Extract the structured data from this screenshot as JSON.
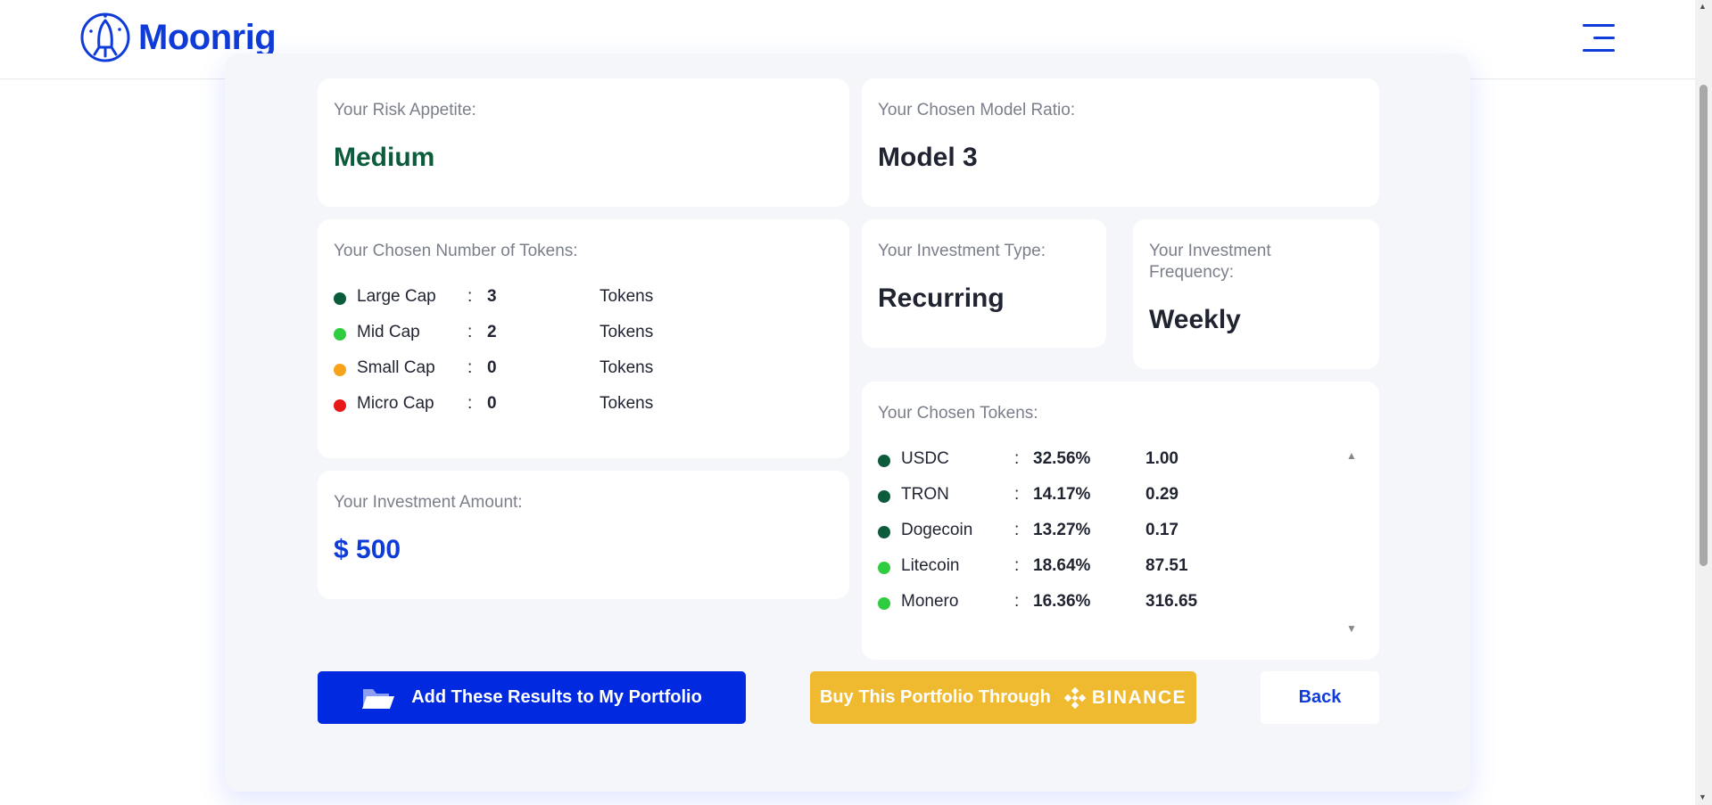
{
  "app": {
    "name": "Moonrig"
  },
  "colors": {
    "brand": "#0f3bd8",
    "large_cap": "#0b5c3b",
    "mid_cap": "#2fcc3f",
    "small_cap": "#f7a21b",
    "micro_cap": "#e81818",
    "binance": "#f0ba30",
    "value_green": "#0b5c3b",
    "amount_blue": "#0f3bd8"
  },
  "risk": {
    "label": "Your Risk Appetite:",
    "value": "Medium"
  },
  "model": {
    "label": "Your Chosen Model Ratio:",
    "value": "Model 3"
  },
  "tokens_count": {
    "label": "Your Chosen Number of Tokens:",
    "rows": [
      {
        "name": "Large Cap",
        "sep": ":",
        "count": "3",
        "unit": "Tokens",
        "color": "#0b5c3b"
      },
      {
        "name": "Mid Cap",
        "sep": ":",
        "count": "2",
        "unit": "Tokens",
        "color": "#2fcc3f"
      },
      {
        "name": "Small Cap",
        "sep": ":",
        "count": "0",
        "unit": "Tokens",
        "color": "#f7a21b"
      },
      {
        "name": "Micro Cap",
        "sep": ":",
        "count": "0",
        "unit": "Tokens",
        "color": "#e81818"
      }
    ]
  },
  "amount": {
    "label": "Your Investment Amount:",
    "value": "$ 500"
  },
  "investment_type": {
    "label": "Your Investment Type:",
    "value": "Recurring"
  },
  "frequency": {
    "label_line1": "Your Investment",
    "label_line2": "Frequency:",
    "value": "Weekly"
  },
  "chosen_tokens": {
    "label": "Your Chosen Tokens:",
    "rows": [
      {
        "name": "USDC",
        "sep": ":",
        "percent": "32.56%",
        "price": "1.00",
        "color": "#0b5c3b"
      },
      {
        "name": "TRON",
        "sep": ":",
        "percent": "14.17%",
        "price": "0.29",
        "color": "#0b5c3b"
      },
      {
        "name": "Dogecoin",
        "sep": ":",
        "percent": "13.27%",
        "price": "0.17",
        "color": "#0b5c3b"
      },
      {
        "name": "Litecoin",
        "sep": ":",
        "percent": "18.64%",
        "price": "87.51",
        "color": "#2fcc3f"
      },
      {
        "name": "Monero",
        "sep": ":",
        "percent": "16.36%",
        "price": "316.65",
        "color": "#2fcc3f"
      }
    ]
  },
  "buttons": {
    "add_portfolio": "Add These Results to My Portfolio",
    "buy_through": "Buy This Portfolio Through",
    "binance_brand": "BINANCE",
    "back": "Back"
  },
  "icons": {
    "logo": "rocket-logo-icon",
    "menu": "hamburger-menu-icon",
    "folder": "folder-open-icon",
    "binance": "binance-icon"
  }
}
